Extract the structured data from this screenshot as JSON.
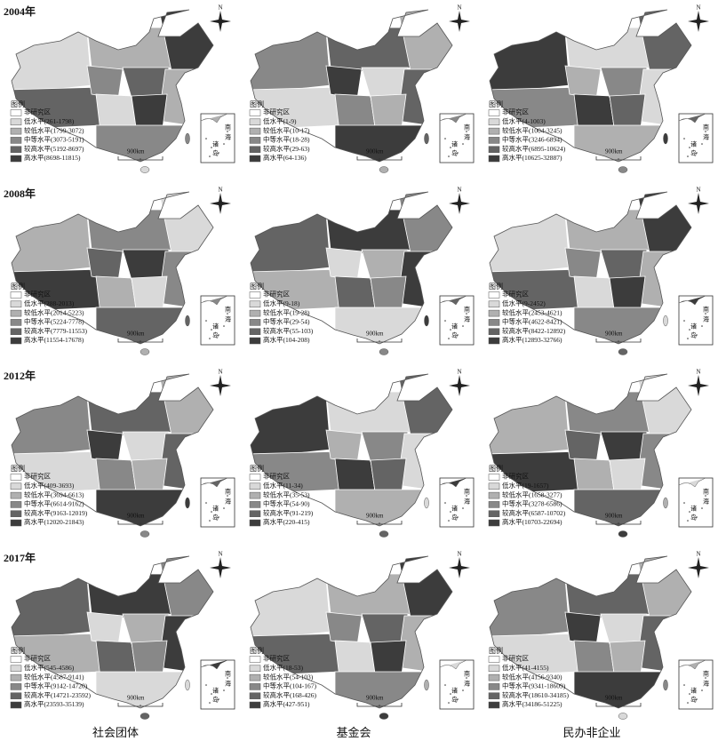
{
  "panels": [
    {
      "year": "2004年",
      "maps": [
        {
          "legend_title": "图例",
          "legend": [
            "非研究区",
            "低水平(261-1798)",
            "较低水平(1799-3072)",
            "中等水平(3073-5191)",
            "较高水平(5192-8697)",
            "高水平(8698-11815)"
          ],
          "scale": "900km",
          "north": "N",
          "inset": [
            "南",
            "海",
            "诸",
            "岛"
          ]
        },
        {
          "legend_title": "图例",
          "legend": [
            "非研究区",
            "低水平(1-9)",
            "较低水平(10-17)",
            "中等水平(18-28)",
            "较高水平(29-63)",
            "高水平(64-136)"
          ],
          "scale": "900km",
          "north": "N",
          "inset": [
            "南",
            "海",
            "诸",
            "岛"
          ]
        },
        {
          "legend_title": "图例",
          "legend": [
            "非研究区",
            "低水平(4-1003)",
            "较低水平(1004-3245)",
            "中等水平(3246-6894)",
            "较高水平(6895-10624)",
            "高水平(10625-32887)"
          ],
          "scale": "900km",
          "north": "N",
          "inset": [
            "南",
            "海",
            "诸",
            "岛"
          ]
        }
      ]
    },
    {
      "year": "2008年",
      "maps": [
        {
          "legend_title": "图例",
          "legend": [
            "非研究区",
            "低水平(288-2013)",
            "较低水平(2014-5223)",
            "中等水平(5224-7778)",
            "较高水平(7779-11553)",
            "高水平(11554-17678)"
          ],
          "scale": "900km",
          "north": "N",
          "inset": [
            "南",
            "海",
            "诸",
            "岛"
          ]
        },
        {
          "legend_title": "图例",
          "legend": [
            "非研究区",
            "低水平(9-18)",
            "较低水平(19-28)",
            "中等水平(29-54)",
            "较高水平(55-103)",
            "高水平(104-208)"
          ],
          "scale": "900km",
          "north": "N",
          "inset": [
            "南",
            "海",
            "诸",
            "岛"
          ]
        },
        {
          "legend_title": "图例",
          "legend": [
            "非研究区",
            "低水平(9-2452)",
            "较低水平(2453-4621)",
            "中等水平(4622-8421)",
            "较高水平(8422-12892)",
            "高水平(12893-32766)"
          ],
          "scale": "900km",
          "north": "N",
          "inset": [
            "南",
            "海",
            "诸",
            "岛"
          ]
        }
      ]
    },
    {
      "year": "2012年",
      "maps": [
        {
          "legend_title": "图例",
          "legend": [
            "非研究区",
            "低水平(409-3693)",
            "较低水平(3694-6613)",
            "中等水平(6614-9162)",
            "较高水平(9163-12019)",
            "高水平(12020-21843)"
          ],
          "scale": "900km",
          "north": "N",
          "inset": [
            "南",
            "海",
            "诸",
            "岛"
          ]
        },
        {
          "legend_title": "图例",
          "legend": [
            "非研究区",
            "低水平(11-34)",
            "较低水平(35-53)",
            "中等水平(54-90)",
            "较高水平(91-219)",
            "高水平(220-415)"
          ],
          "scale": "900km",
          "north": "N",
          "inset": [
            "南",
            "海",
            "诸",
            "岛"
          ]
        },
        {
          "legend_title": "图例",
          "legend": [
            "非研究区",
            "低水平(19-1657)",
            "较低水平(1658-3277)",
            "中等水平(3278-6586)",
            "较高水平(6587-10702)",
            "高水平(10703-22694)"
          ],
          "scale": "900km",
          "north": "N",
          "inset": [
            "南",
            "海",
            "诸",
            "岛"
          ]
        }
      ]
    },
    {
      "year": "2017年",
      "maps": [
        {
          "legend_title": "图例",
          "legend": [
            "非研究区",
            "低水平(545-4586)",
            "较低水平(4587-9141)",
            "中等水平(9142-14720)",
            "较高水平(14721-23592)",
            "高水平(23593-35139)"
          ],
          "scale": "900km",
          "north": "N",
          "inset": [
            "南",
            "海",
            "诸",
            "岛"
          ]
        },
        {
          "legend_title": "图例",
          "legend": [
            "非研究区",
            "低水平(18-53)",
            "较低水平(54-103)",
            "中等水平(104-167)",
            "较高水平(168-426)",
            "高水平(427-951)"
          ],
          "scale": "900km",
          "north": "N",
          "inset": [
            "南",
            "海",
            "诸",
            "岛"
          ]
        },
        {
          "legend_title": "图例",
          "legend": [
            "非研究区",
            "低水平(41-4155)",
            "较低水平(4156-9340)",
            "中等水平(9341-18609)",
            "较高水平(18610-34185)",
            "高水平(34186-51225)"
          ],
          "scale": "900km",
          "north": "N",
          "inset": [
            "南",
            "海",
            "诸",
            "岛"
          ]
        }
      ]
    }
  ],
  "columns": [
    "社会团体",
    "基金会",
    "民办非企业"
  ]
}
